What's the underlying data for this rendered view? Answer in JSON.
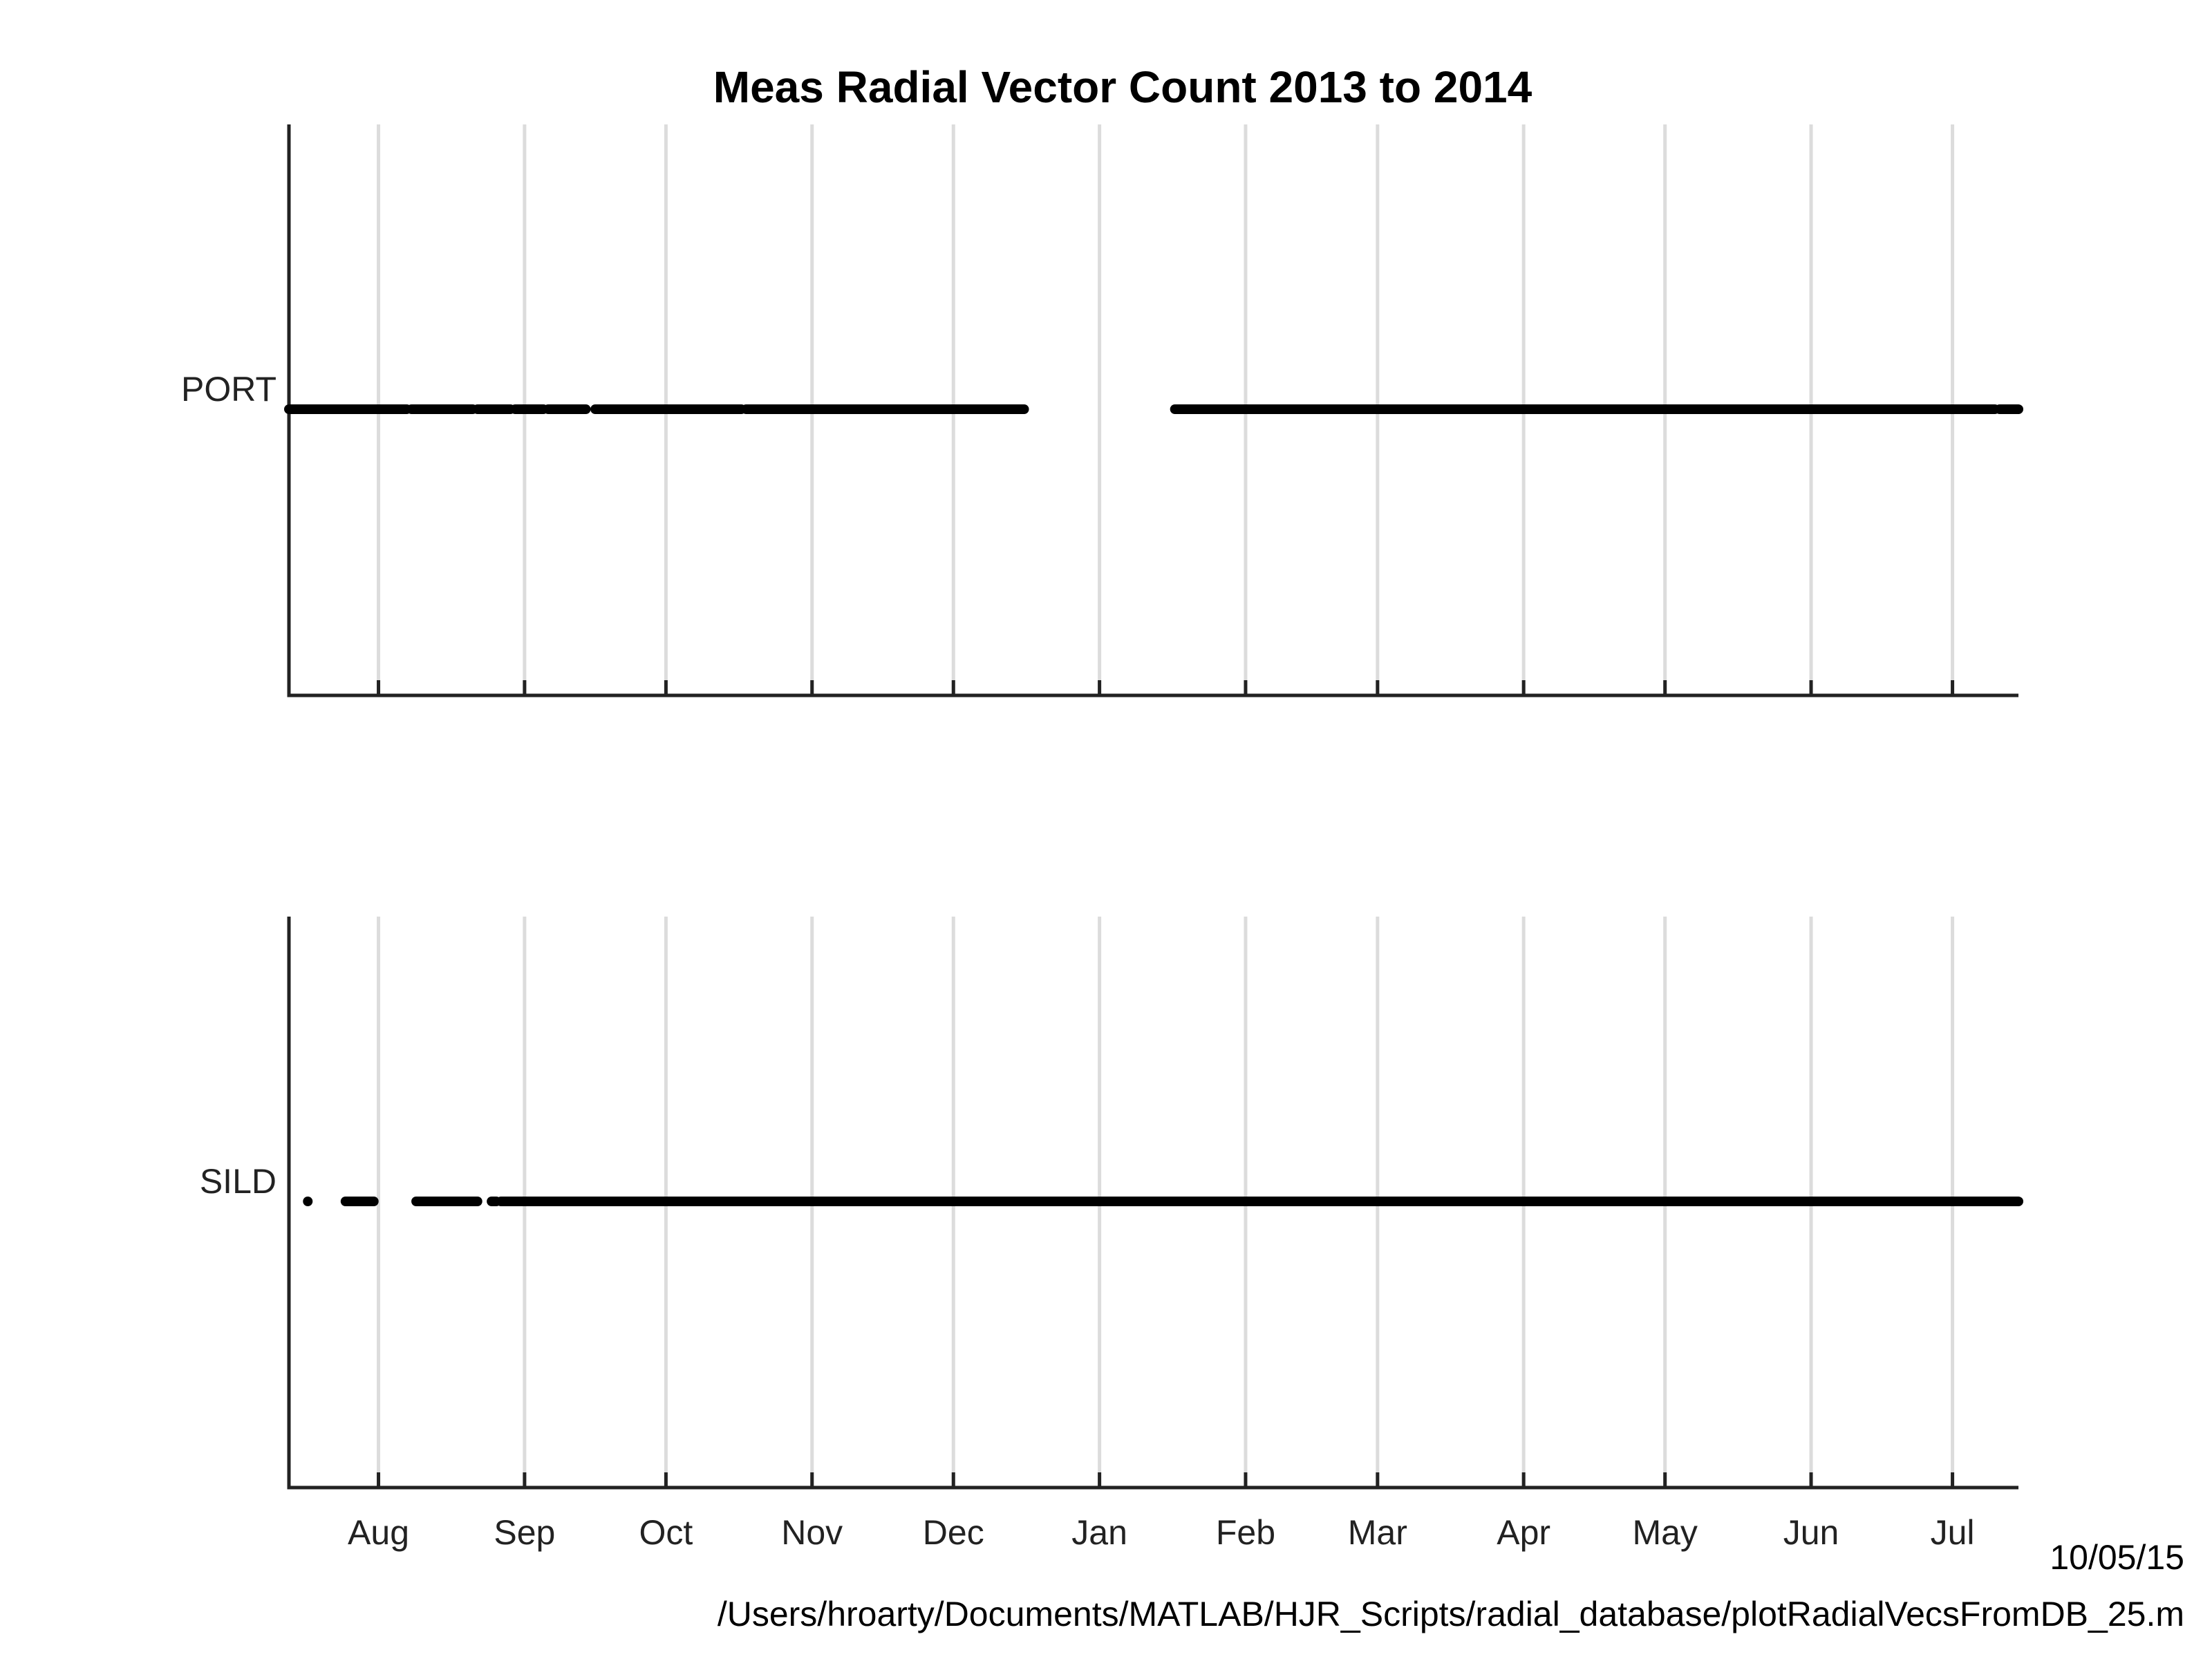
{
  "chart_data": {
    "type": "scatter",
    "title": "Meas Radial Vector Count 2013 to  2014",
    "x_range": [
      "2013-07-13",
      "2014-07-15"
    ],
    "month_ticks": [
      {
        "label": "Aug",
        "date": "2013-08-01"
      },
      {
        "label": "Sep",
        "date": "2013-09-01"
      },
      {
        "label": "Oct",
        "date": "2013-10-01"
      },
      {
        "label": "Nov",
        "date": "2013-11-01"
      },
      {
        "label": "Dec",
        "date": "2013-12-01"
      },
      {
        "label": "Jan",
        "date": "2014-01-01"
      },
      {
        "label": "Feb",
        "date": "2014-02-01"
      },
      {
        "label": "Mar",
        "date": "2014-03-01"
      },
      {
        "label": "Apr",
        "date": "2014-04-01"
      },
      {
        "label": "May",
        "date": "2014-05-01"
      },
      {
        "label": "Jun",
        "date": "2014-06-01"
      },
      {
        "label": "Jul",
        "date": "2014-07-01"
      }
    ],
    "grid": true,
    "series": [
      {
        "name": "PORT",
        "color": "#000000",
        "segments": [
          [
            "2013-07-13",
            "2013-08-07"
          ],
          [
            "2013-08-08",
            "2013-08-21"
          ],
          [
            "2013-08-22",
            "2013-08-29"
          ],
          [
            "2013-08-30",
            "2013-09-05"
          ],
          [
            "2013-09-06",
            "2013-09-14"
          ],
          [
            "2013-09-16",
            "2013-10-17"
          ],
          [
            "2013-10-18",
            "2013-12-16"
          ],
          [
            "2014-01-17",
            "2014-07-10"
          ],
          [
            "2014-07-11",
            "2014-07-15"
          ]
        ]
      },
      {
        "name": "SILD",
        "color": "#000000",
        "segments": [
          [
            "2013-07-17",
            "2013-07-17"
          ],
          [
            "2013-07-25",
            "2013-07-31"
          ],
          [
            "2013-08-09",
            "2013-08-22"
          ],
          [
            "2013-08-25",
            "2013-08-26"
          ],
          [
            "2013-08-27",
            "2014-07-15"
          ]
        ]
      }
    ]
  },
  "footer": {
    "date": "10/05/15",
    "path": "/Users/hroarty/Documents/MATLAB/HJR_Scripts/radial_database/plotRadialVecsFromDB_25.m"
  }
}
